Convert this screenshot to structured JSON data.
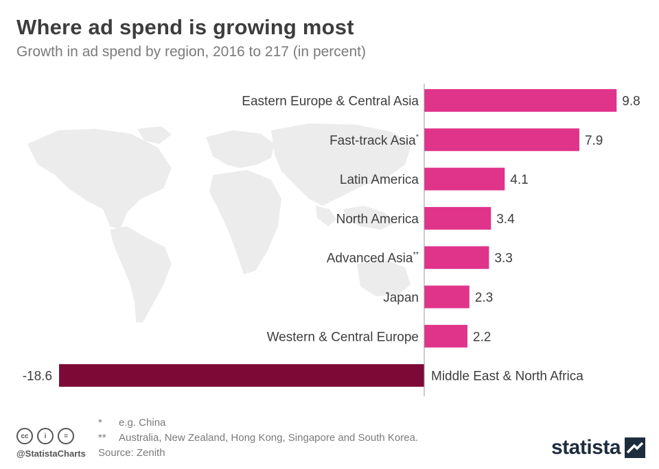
{
  "title": "Where ad spend is growing most",
  "subtitle": "Growth in ad spend by region, 2016 to 217 (in percent)",
  "chart_data": {
    "type": "bar",
    "orientation": "horizontal",
    "categories": [
      "Eastern Europe & Central Asia",
      "Fast-track Asia",
      "Latin America",
      "North America",
      "Advanced Asia",
      "Japan",
      "Western & Central Europe",
      "Middle East & North Africa"
    ],
    "category_superscripts": [
      "",
      "*",
      "",
      "",
      "**",
      "",
      "",
      ""
    ],
    "values": [
      9.8,
      7.9,
      4.1,
      3.4,
      3.3,
      2.3,
      2.2,
      -18.6
    ],
    "value_labels": [
      "9.8",
      "7.9",
      "4.1",
      "3.4",
      "3.3",
      "2.3",
      "2.2",
      "-18.6"
    ],
    "xlim": [
      -18.6,
      9.8
    ],
    "grid": false,
    "legend": "none",
    "colors": {
      "positive": "#e0338a",
      "negative": "#7d0a36",
      "axis": "#999999"
    }
  },
  "footnotes": [
    {
      "mark": "*",
      "text": "e.g. China"
    },
    {
      "mark": "**",
      "text": "Australia, New Zealand, Hong Kong, Singapore and South Korea."
    }
  ],
  "source": "Source: Zenith",
  "license_icons": [
    "cc-icon",
    "person-icon",
    "equals-icon"
  ],
  "license_icon_glyphs": [
    "cc",
    "i",
    "="
  ],
  "handle": "@StatistaCharts",
  "brand": "statista"
}
